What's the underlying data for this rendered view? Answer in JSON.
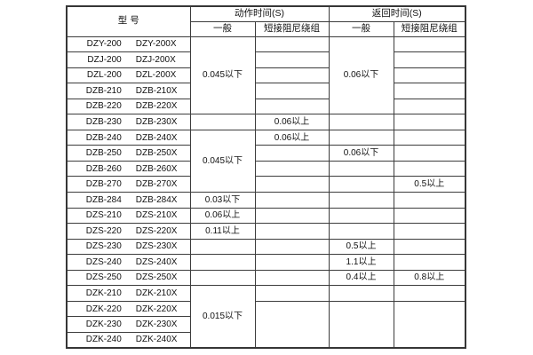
{
  "header": {
    "model_label": "型  号",
    "action_time_label": "动作时间(S)",
    "return_time_label": "返回时间(S)",
    "general_label": "一般",
    "damped_label": "短接阻尼绕组"
  },
  "models": [
    {
      "a": "DZY-200",
      "b": "DZY-200X"
    },
    {
      "a": "DZJ-200",
      "b": "DZJ-200X"
    },
    {
      "a": "DZL-200",
      "b": "DZL-200X"
    },
    {
      "a": "DZB-210",
      "b": "DZB-210X"
    },
    {
      "a": "DZB-220",
      "b": "DZB-220X"
    },
    {
      "a": "DZB-230",
      "b": "DZB-230X"
    },
    {
      "a": "DZB-240",
      "b": "DZB-240X"
    },
    {
      "a": "DZB-250",
      "b": "DZB-250X"
    },
    {
      "a": "DZB-260",
      "b": "DZB-260X"
    },
    {
      "a": "DZB-270",
      "b": "DZB-270X"
    },
    {
      "a": "DZB-284",
      "b": "DZB-284X"
    },
    {
      "a": "DZS-210",
      "b": "DZS-210X"
    },
    {
      "a": "DZS-220",
      "b": "DZS-220X"
    },
    {
      "a": "DZS-230",
      "b": "DZS-230X"
    },
    {
      "a": "DZS-240",
      "b": "DZS-240X"
    },
    {
      "a": "DZS-250",
      "b": "DZS-250X"
    },
    {
      "a": "DZK-210",
      "b": "DZK-210X"
    },
    {
      "a": "DZK-220",
      "b": "DZK-220X"
    },
    {
      "a": "DZK-230",
      "b": "DZK-230X"
    },
    {
      "a": "DZK-240",
      "b": "DZK-240X"
    }
  ],
  "columns": {
    "act_general": [
      {
        "row": 0,
        "span": 5,
        "text": "0.045以下"
      },
      {
        "row": 5,
        "span": 1,
        "text": ""
      },
      {
        "row": 6,
        "span": 4,
        "text": "0.045以下"
      },
      {
        "row": 10,
        "span": 1,
        "text": "0.03以下"
      },
      {
        "row": 11,
        "span": 1,
        "text": "0.06以上"
      },
      {
        "row": 12,
        "span": 1,
        "text": "0.11以上"
      },
      {
        "row": 13,
        "span": 1,
        "text": ""
      },
      {
        "row": 14,
        "span": 1,
        "text": ""
      },
      {
        "row": 15,
        "span": 1,
        "text": ""
      },
      {
        "row": 16,
        "span": 4,
        "text": "0.015以下"
      }
    ],
    "act_damped": [
      {
        "row": 0,
        "span": 1,
        "text": ""
      },
      {
        "row": 1,
        "span": 1,
        "text": ""
      },
      {
        "row": 2,
        "span": 1,
        "text": ""
      },
      {
        "row": 3,
        "span": 1,
        "text": ""
      },
      {
        "row": 4,
        "span": 1,
        "text": ""
      },
      {
        "row": 5,
        "span": 1,
        "text": "0.06以上"
      },
      {
        "row": 6,
        "span": 1,
        "text": "0.06以上"
      },
      {
        "row": 7,
        "span": 1,
        "text": ""
      },
      {
        "row": 8,
        "span": 1,
        "text": ""
      },
      {
        "row": 9,
        "span": 1,
        "text": ""
      },
      {
        "row": 10,
        "span": 1,
        "text": ""
      },
      {
        "row": 11,
        "span": 1,
        "text": ""
      },
      {
        "row": 12,
        "span": 1,
        "text": ""
      },
      {
        "row": 13,
        "span": 1,
        "text": ""
      },
      {
        "row": 14,
        "span": 1,
        "text": ""
      },
      {
        "row": 15,
        "span": 1,
        "text": ""
      },
      {
        "row": 16,
        "span": 1,
        "text": ""
      },
      {
        "row": 17,
        "span": 3,
        "text": ""
      }
    ],
    "ret_general": [
      {
        "row": 0,
        "span": 5,
        "text": "0.06以下"
      },
      {
        "row": 5,
        "span": 1,
        "text": ""
      },
      {
        "row": 6,
        "span": 1,
        "text": ""
      },
      {
        "row": 7,
        "span": 1,
        "text": "0.06以下"
      },
      {
        "row": 8,
        "span": 1,
        "text": ""
      },
      {
        "row": 9,
        "span": 1,
        "text": ""
      },
      {
        "row": 10,
        "span": 1,
        "text": ""
      },
      {
        "row": 11,
        "span": 1,
        "text": ""
      },
      {
        "row": 12,
        "span": 1,
        "text": ""
      },
      {
        "row": 13,
        "span": 1,
        "text": "0.5以上"
      },
      {
        "row": 14,
        "span": 1,
        "text": "1.1以上"
      },
      {
        "row": 15,
        "span": 1,
        "text": "0.4以上"
      },
      {
        "row": 16,
        "span": 1,
        "text": ""
      },
      {
        "row": 17,
        "span": 3,
        "text": ""
      }
    ],
    "ret_damped": [
      {
        "row": 0,
        "span": 1,
        "text": ""
      },
      {
        "row": 1,
        "span": 1,
        "text": ""
      },
      {
        "row": 2,
        "span": 1,
        "text": ""
      },
      {
        "row": 3,
        "span": 1,
        "text": ""
      },
      {
        "row": 4,
        "span": 1,
        "text": ""
      },
      {
        "row": 5,
        "span": 1,
        "text": ""
      },
      {
        "row": 6,
        "span": 1,
        "text": ""
      },
      {
        "row": 7,
        "span": 1,
        "text": ""
      },
      {
        "row": 8,
        "span": 1,
        "text": ""
      },
      {
        "row": 9,
        "span": 1,
        "text": "0.5以上"
      },
      {
        "row": 10,
        "span": 1,
        "text": ""
      },
      {
        "row": 11,
        "span": 1,
        "text": ""
      },
      {
        "row": 12,
        "span": 1,
        "text": ""
      },
      {
        "row": 13,
        "span": 1,
        "text": ""
      },
      {
        "row": 14,
        "span": 1,
        "text": ""
      },
      {
        "row": 15,
        "span": 1,
        "text": "0.8以上"
      },
      {
        "row": 16,
        "span": 1,
        "text": ""
      },
      {
        "row": 17,
        "span": 3,
        "text": ""
      }
    ]
  },
  "colors": {
    "border": "#3c3c3c",
    "background": "#ffffff",
    "text": "#111111"
  }
}
